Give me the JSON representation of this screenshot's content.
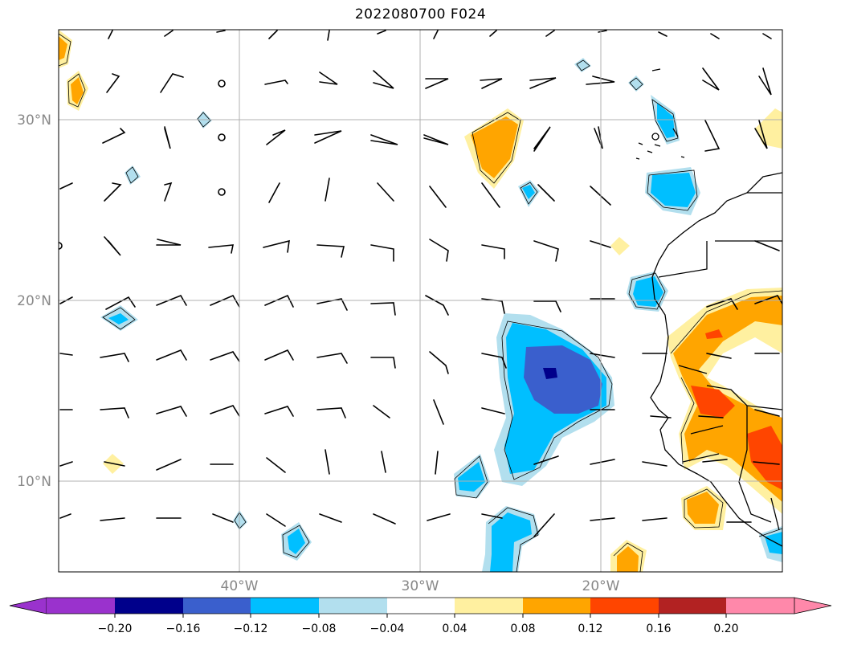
{
  "title": "2022080700 F024",
  "axes": {
    "x_ticks": [
      {
        "label": "40°W",
        "lon": -40
      },
      {
        "label": "30°W",
        "lon": -30
      },
      {
        "label": "20°W",
        "lon": -20
      }
    ],
    "y_ticks": [
      {
        "label": "30°N",
        "lat": 30
      },
      {
        "label": "20°N",
        "lat": 20
      },
      {
        "label": "10°N",
        "lat": 10
      }
    ],
    "lon_range": [
      -50,
      -10
    ],
    "lat_range": [
      5,
      35
    ],
    "grid": true,
    "label_color": "#888888"
  },
  "colorbar": {
    "ticks": [
      "−0.20",
      "−0.16",
      "−0.12",
      "−0.08",
      "−0.04",
      "0.04",
      "0.08",
      "0.12",
      "0.16",
      "0.20"
    ],
    "colors": [
      "#9a32cd",
      "#00008b",
      "#3a5fcd",
      "#00bfff",
      "#b2dfee",
      "#ffffff",
      "#fff0a0",
      "#ffa500",
      "#ff4500",
      "#b22222",
      "#ff88aa"
    ],
    "extend": "both"
  },
  "shading": {
    "strong_negative": "#3a5fcd",
    "darkest_negative": "#00008b",
    "negative": "#00bfff",
    "weak_negative": "#b2dfee",
    "weak_positive": "#fff0a0",
    "positive": "#ffa500",
    "strong_positive": "#ff4500"
  }
}
